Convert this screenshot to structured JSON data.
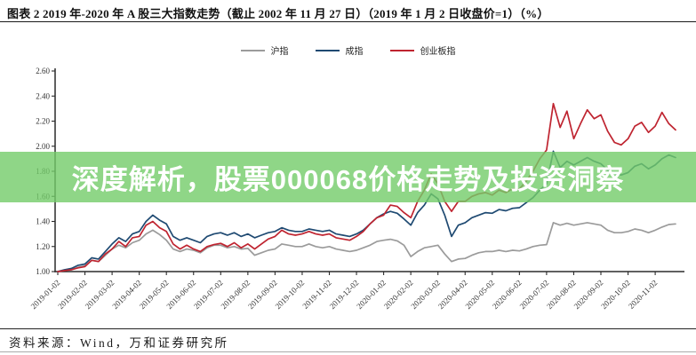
{
  "header": {
    "title": "图表 2  2019 年-2020 年 A 股三大指数走势（截止 2002 年 11 月 27 日）（2019 年 1 月 2 日收盘价=1）（%）"
  },
  "overlay": {
    "text": "深度解析，股票000068价格走势及投资洞察",
    "bg_color": "rgba(115,204,105,0.8)",
    "text_color": "#ffffff"
  },
  "footer": {
    "source": "资料来源：Wind，万和证券研究所"
  },
  "chart_data": {
    "type": "line",
    "title": "2019 年-2020 年 A 股三大指数走势（2019 年 1 月 2 日收盘价=1）",
    "xlabel": "",
    "ylabel": "",
    "ylim": [
      1.0,
      2.6
    ],
    "y_ticks": [
      1.0,
      1.2,
      1.4,
      1.6,
      1.8,
      2.0,
      2.2,
      2.4,
      2.6
    ],
    "grid": false,
    "legend_position": "top-center",
    "x_tick_labels": [
      "2019-01-02",
      "2019-02-02",
      "2019-03-02",
      "2019-04-02",
      "2019-05-02",
      "2019-06-02",
      "2019-07-02",
      "2019-08-02",
      "2019-09-02",
      "2019-10-02",
      "2019-11-02",
      "2019-12-02",
      "2020-01-02",
      "2020-02-02",
      "2020-03-02",
      "2020-04-02",
      "2020-05-02",
      "2020-06-02",
      "2020-07-02",
      "2020-08-02",
      "2020-09-02",
      "2020-10-02",
      "2020-11-02"
    ],
    "t_step": 0.25,
    "series": [
      {
        "name": "沪指",
        "color": "#9b9b9b",
        "values": [
          1.0,
          1.01,
          1.015,
          1.035,
          1.045,
          1.09,
          1.08,
          1.13,
          1.18,
          1.21,
          1.19,
          1.23,
          1.25,
          1.3,
          1.33,
          1.295,
          1.25,
          1.18,
          1.16,
          1.18,
          1.17,
          1.15,
          1.19,
          1.21,
          1.21,
          1.19,
          1.2,
          1.18,
          1.185,
          1.13,
          1.15,
          1.17,
          1.18,
          1.22,
          1.21,
          1.2,
          1.2,
          1.22,
          1.2,
          1.19,
          1.2,
          1.18,
          1.17,
          1.16,
          1.17,
          1.19,
          1.21,
          1.24,
          1.25,
          1.258,
          1.245,
          1.21,
          1.12,
          1.16,
          1.19,
          1.2,
          1.21,
          1.14,
          1.08,
          1.1,
          1.105,
          1.13,
          1.15,
          1.16,
          1.16,
          1.17,
          1.16,
          1.17,
          1.165,
          1.18,
          1.2,
          1.21,
          1.215,
          1.39,
          1.37,
          1.385,
          1.37,
          1.38,
          1.39,
          1.38,
          1.37,
          1.33,
          1.31,
          1.31,
          1.32,
          1.34,
          1.33,
          1.31,
          1.33,
          1.355,
          1.375,
          1.38
        ]
      },
      {
        "name": "成指",
        "color": "#1f4a72",
        "values": [
          1.0,
          1.015,
          1.025,
          1.05,
          1.06,
          1.11,
          1.1,
          1.16,
          1.22,
          1.27,
          1.24,
          1.3,
          1.32,
          1.4,
          1.45,
          1.41,
          1.38,
          1.28,
          1.25,
          1.27,
          1.25,
          1.23,
          1.28,
          1.3,
          1.31,
          1.29,
          1.31,
          1.28,
          1.3,
          1.27,
          1.29,
          1.31,
          1.32,
          1.35,
          1.33,
          1.32,
          1.32,
          1.34,
          1.33,
          1.32,
          1.33,
          1.3,
          1.29,
          1.28,
          1.3,
          1.33,
          1.38,
          1.43,
          1.46,
          1.48,
          1.465,
          1.42,
          1.37,
          1.47,
          1.53,
          1.62,
          1.58,
          1.45,
          1.28,
          1.37,
          1.39,
          1.43,
          1.45,
          1.47,
          1.465,
          1.495,
          1.485,
          1.505,
          1.51,
          1.55,
          1.59,
          1.65,
          1.7,
          1.96,
          1.83,
          1.88,
          1.85,
          1.88,
          1.91,
          1.88,
          1.86,
          1.81,
          1.78,
          1.77,
          1.79,
          1.84,
          1.86,
          1.82,
          1.85,
          1.9,
          1.93,
          1.91
        ]
      },
      {
        "name": "创业板指",
        "color": "#bf2430",
        "values": [
          1.0,
          1.008,
          1.015,
          1.03,
          1.04,
          1.09,
          1.08,
          1.14,
          1.18,
          1.24,
          1.2,
          1.27,
          1.28,
          1.37,
          1.4,
          1.35,
          1.32,
          1.22,
          1.18,
          1.21,
          1.18,
          1.16,
          1.2,
          1.215,
          1.225,
          1.2,
          1.23,
          1.19,
          1.22,
          1.18,
          1.22,
          1.26,
          1.28,
          1.33,
          1.3,
          1.29,
          1.3,
          1.32,
          1.3,
          1.29,
          1.3,
          1.27,
          1.26,
          1.25,
          1.28,
          1.32,
          1.38,
          1.43,
          1.45,
          1.53,
          1.52,
          1.47,
          1.43,
          1.56,
          1.65,
          1.78,
          1.7,
          1.56,
          1.48,
          1.56,
          1.56,
          1.6,
          1.62,
          1.63,
          1.61,
          1.65,
          1.63,
          1.66,
          1.66,
          1.72,
          1.8,
          1.9,
          1.97,
          2.34,
          2.15,
          2.28,
          2.06,
          2.18,
          2.29,
          2.22,
          2.25,
          2.12,
          2.03,
          2.01,
          2.06,
          2.16,
          2.19,
          2.11,
          2.16,
          2.27,
          2.18,
          2.13
        ]
      }
    ]
  }
}
